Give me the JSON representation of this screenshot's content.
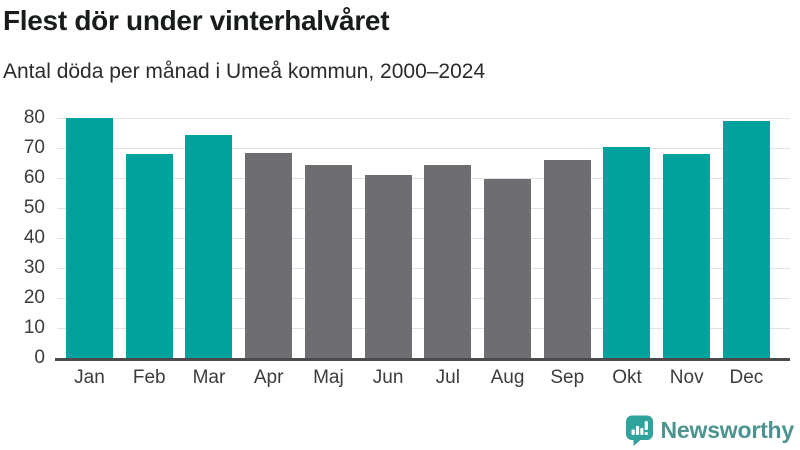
{
  "header": {
    "title": "Flest dör under vinterhalvåret",
    "subtitle": "Antal döda per månad i Umeå kommun, 2000–2024"
  },
  "chart_data": {
    "type": "bar",
    "categories": [
      "Jan",
      "Feb",
      "Mar",
      "Apr",
      "Maj",
      "Jun",
      "Jul",
      "Aug",
      "Sep",
      "Okt",
      "Nov",
      "Dec"
    ],
    "values": [
      80,
      68,
      74.5,
      68.3,
      64.2,
      61,
      64.5,
      59.7,
      65.9,
      70.5,
      68,
      79
    ],
    "highlighted": [
      true,
      true,
      true,
      false,
      false,
      false,
      false,
      false,
      false,
      true,
      true,
      true
    ],
    "highlight_color": "#00a29b",
    "muted_color": "#6e6e72",
    "ylim": [
      0,
      80
    ],
    "ytick_step": 10,
    "grid": true
  },
  "footer": {
    "brand": "Newsworthy",
    "brand_color": "#4b948f",
    "icon_color": "#2fa39c"
  }
}
